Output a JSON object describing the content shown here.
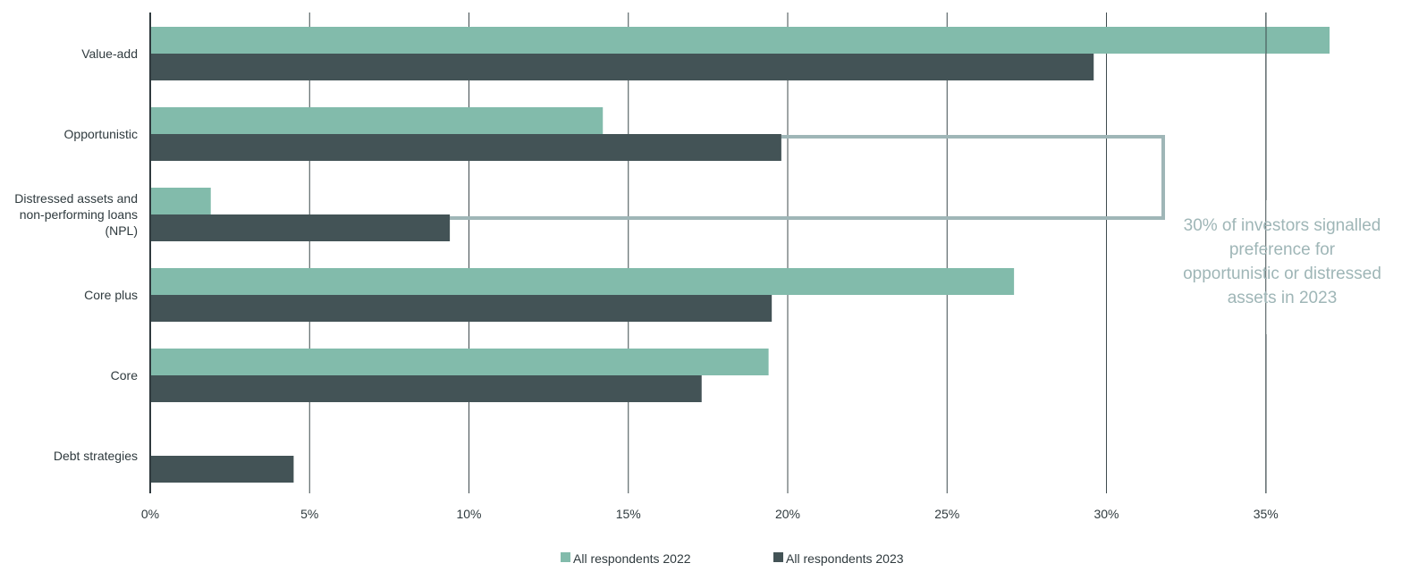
{
  "chart_data": {
    "type": "bar",
    "orientation": "horizontal",
    "categories": [
      [
        "Value-add"
      ],
      [
        "Opportunistic"
      ],
      [
        "Distressed assets and",
        "non-performing loans",
        "(NPL)"
      ],
      [
        "Core plus"
      ],
      [
        "Core"
      ],
      [
        "Debt strategies"
      ]
    ],
    "series": [
      {
        "name": "All respondents 2022",
        "color": "#82bbab",
        "values": [
          37.0,
          14.2,
          1.9,
          27.1,
          19.4,
          null
        ]
      },
      {
        "name": "All respondents 2023",
        "color": "#435356",
        "values": [
          29.6,
          19.8,
          9.4,
          19.5,
          17.3,
          4.5
        ]
      }
    ],
    "xlim": [
      0,
      35
    ],
    "xticks": [
      {
        "value": 0,
        "label": "0%"
      },
      {
        "value": 5,
        "label": "5%"
      },
      {
        "value": 10,
        "label": "10%"
      },
      {
        "value": 15,
        "label": "15%"
      },
      {
        "value": 20,
        "label": "20%"
      },
      {
        "value": 25,
        "label": "25%"
      },
      {
        "value": 30,
        "label": "30%"
      },
      {
        "value": 35,
        "label": "35%"
      }
    ],
    "grid": true,
    "legend_position": "bottom-center",
    "annotation": {
      "lines": [
        "30% of investors signalled",
        "preference for",
        "opportunistic or distressed",
        "assets in 2023"
      ],
      "color": "#9fb6b7",
      "bracket_color": "#9fb6b7"
    }
  }
}
